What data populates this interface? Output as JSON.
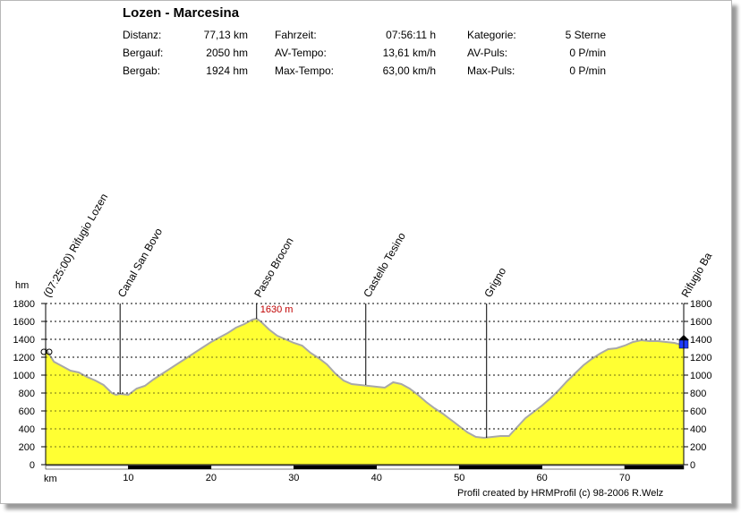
{
  "header": {
    "title": "Lozen - Marcesina",
    "stats": {
      "distanz_label": "Distanz:",
      "distanz_value": "77,13 km",
      "bergauf_label": "Bergauf:",
      "bergauf_value": "2050 hm",
      "bergab_label": "Bergab:",
      "bergab_value": "1924 hm",
      "fahrzeit_label": "Fahrzeit:",
      "fahrzeit_value": "07:56:11 h",
      "av_tempo_label": "AV-Tempo:",
      "av_tempo_value": "13,61 km/h",
      "max_tempo_label": "Max-Tempo:",
      "max_tempo_value": "63,00 km/h",
      "kategorie_label": "Kategorie:",
      "kategorie_value": "5 Sterne",
      "av_puls_label": "AV-Puls:",
      "av_puls_value": "0 P/min",
      "max_puls_label": "Max-Puls:",
      "max_puls_value": "0 P/min"
    }
  },
  "credit": "Profil created by HRMProfil (c) 98-2006 R.Welz",
  "chart_data": {
    "type": "area",
    "ylabel": "hm",
    "xlabel": "km",
    "xlim": [
      0,
      77.13
    ],
    "ylim": [
      0,
      1800
    ],
    "x_ticks": [
      10,
      20,
      30,
      40,
      50,
      60,
      70
    ],
    "y_ticks": [
      0,
      200,
      400,
      600,
      800,
      1000,
      1200,
      1400,
      1600,
      1800
    ],
    "grid": true,
    "fill_color": "#ffff33",
    "outline_color": "#a8a8a8",
    "x": [
      0,
      1,
      2,
      3,
      4,
      5,
      6,
      7,
      8,
      8.5,
      9,
      10,
      11,
      12,
      13,
      14,
      15,
      16,
      17,
      18,
      19,
      20,
      21,
      22,
      23,
      24,
      25,
      25.5,
      26,
      27,
      28,
      29,
      30,
      31,
      32,
      33,
      34,
      35,
      36,
      37,
      38,
      39,
      40,
      41,
      42,
      43,
      44,
      45,
      46,
      47,
      48,
      49,
      50,
      51,
      52,
      53,
      54,
      55,
      56,
      57,
      58,
      59,
      60,
      61,
      62,
      63,
      64,
      65,
      66,
      67,
      68,
      69,
      70,
      71,
      72,
      73,
      74,
      75,
      76,
      77.13
    ],
    "y": [
      1300,
      1150,
      1100,
      1050,
      1030,
      980,
      940,
      890,
      800,
      780,
      790,
      780,
      850,
      880,
      950,
      1010,
      1070,
      1130,
      1190,
      1250,
      1310,
      1370,
      1420,
      1470,
      1530,
      1570,
      1620,
      1630,
      1600,
      1510,
      1440,
      1400,
      1360,
      1330,
      1250,
      1190,
      1120,
      1020,
      940,
      900,
      890,
      880,
      870,
      860,
      920,
      900,
      850,
      780,
      700,
      630,
      570,
      500,
      430,
      360,
      310,
      300,
      310,
      320,
      320,
      420,
      520,
      590,
      660,
      740,
      830,
      930,
      1020,
      1110,
      1180,
      1240,
      1290,
      1300,
      1330,
      1370,
      1390,
      1380,
      1380,
      1370,
      1360,
      1330
    ],
    "waypoints": [
      {
        "km": 0,
        "label": "(07:25:00) Rifugio Lozen"
      },
      {
        "km": 9,
        "label": "Canal San Bovo"
      },
      {
        "km": 25.5,
        "label": "Passo Brocon",
        "annotation": "1630 m"
      },
      {
        "km": 38.7,
        "label": "Castello Tesino"
      },
      {
        "km": 53.3,
        "label": "Grigno"
      },
      {
        "km": 77.13,
        "label": "Rifugio Ba"
      }
    ]
  }
}
